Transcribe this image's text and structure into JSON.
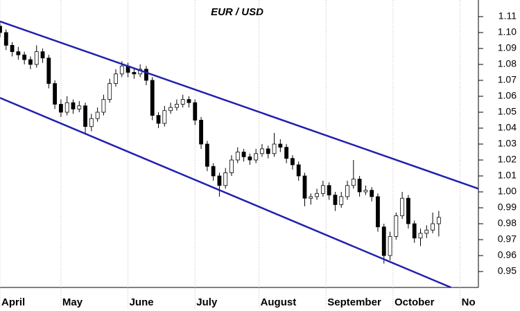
{
  "chart_data": {
    "type": "candlestick",
    "title": "EUR / USD",
    "x": [
      0,
      2,
      4,
      6,
      8,
      10,
      12,
      14,
      16,
      18,
      20,
      22,
      24,
      26,
      28,
      30,
      32,
      34,
      36,
      38,
      40,
      42,
      44,
      46,
      48,
      50,
      52,
      54,
      56,
      58,
      60,
      62,
      64,
      66,
      68,
      70,
      72,
      74,
      76,
      78,
      80,
      82,
      84,
      86,
      88,
      90,
      92,
      94,
      96,
      98,
      100,
      102,
      104,
      106,
      108,
      110,
      112,
      114,
      116,
      118,
      120,
      122,
      124,
      126,
      128,
      130,
      132,
      134,
      136,
      138,
      140,
      142,
      144
    ],
    "open": [
      1.104,
      1.1,
      1.092,
      1.088,
      1.086,
      1.083,
      1.08,
      1.088,
      1.084,
      1.068,
      1.055,
      1.05,
      1.056,
      1.052,
      1.054,
      1.041,
      1.046,
      1.05,
      1.058,
      1.068,
      1.074,
      1.079,
      1.075,
      1.074,
      1.077,
      1.07,
      1.048,
      1.043,
      1.051,
      1.053,
      1.055,
      1.058,
      1.056,
      1.045,
      1.03,
      1.016,
      1.01,
      1.004,
      1.012,
      1.02,
      1.025,
      1.022,
      1.02,
      1.024,
      1.027,
      1.024,
      1.03,
      1.028,
      1.021,
      1.017,
      1.01,
      0.996,
      0.997,
      0.999,
      1.004,
      0.998,
      0.992,
      0.997,
      1.004,
      1.008,
      1.0,
      1.001,
      0.997,
      0.978,
      0.96,
      0.972,
      0.985,
      0.996,
      0.98,
      0.971,
      0.974,
      0.976,
      0.98
    ],
    "high": [
      1.106,
      1.102,
      1.094,
      1.091,
      1.088,
      1.085,
      1.092,
      1.09,
      1.086,
      1.07,
      1.058,
      1.06,
      1.058,
      1.057,
      1.056,
      1.049,
      1.053,
      1.061,
      1.071,
      1.077,
      1.082,
      1.081,
      1.078,
      1.08,
      1.079,
      1.072,
      1.05,
      1.054,
      1.056,
      1.058,
      1.061,
      1.06,
      1.058,
      1.047,
      1.032,
      1.018,
      1.012,
      1.015,
      1.023,
      1.028,
      1.027,
      1.024,
      1.027,
      1.03,
      1.029,
      1.037,
      1.033,
      1.03,
      1.023,
      1.019,
      1.012,
      0.999,
      1.002,
      1.007,
      1.006,
      1.0,
      1.0,
      1.007,
      1.02,
      1.01,
      1.004,
      1.003,
      0.999,
      0.98,
      0.975,
      0.987,
      1.0,
      0.998,
      0.982,
      0.977,
      0.979,
      0.987,
      0.988
    ],
    "low": [
      1.097,
      1.089,
      1.085,
      1.083,
      1.08,
      1.077,
      1.078,
      1.081,
      1.065,
      1.052,
      1.047,
      1.048,
      1.049,
      1.05,
      1.036,
      1.038,
      1.044,
      1.048,
      1.056,
      1.066,
      1.072,
      1.072,
      1.071,
      1.072,
      1.067,
      1.045,
      1.04,
      1.041,
      1.049,
      1.051,
      1.053,
      1.053,
      1.042,
      1.027,
      1.013,
      1.007,
      0.997,
      1.002,
      1.01,
      1.018,
      1.019,
      1.017,
      1.018,
      1.022,
      1.021,
      1.022,
      1.025,
      1.018,
      1.014,
      1.007,
      0.991,
      0.992,
      0.995,
      0.997,
      0.995,
      0.988,
      0.99,
      0.995,
      1.002,
      0.997,
      0.998,
      0.994,
      0.975,
      0.955,
      0.957,
      0.97,
      0.983,
      0.977,
      0.968,
      0.966,
      0.971,
      0.974,
      0.972
    ],
    "close": [
      1.1,
      1.092,
      1.088,
      1.086,
      1.083,
      1.08,
      1.088,
      1.084,
      1.068,
      1.055,
      1.05,
      1.056,
      1.052,
      1.054,
      1.041,
      1.046,
      1.05,
      1.058,
      1.068,
      1.074,
      1.079,
      1.075,
      1.074,
      1.077,
      1.07,
      1.048,
      1.043,
      1.051,
      1.053,
      1.055,
      1.058,
      1.056,
      1.045,
      1.03,
      1.016,
      1.01,
      1.004,
      1.012,
      1.02,
      1.025,
      1.022,
      1.02,
      1.024,
      1.027,
      1.024,
      1.03,
      1.028,
      1.021,
      1.017,
      1.01,
      0.996,
      0.997,
      0.999,
      1.004,
      0.998,
      0.992,
      0.997,
      1.004,
      1.008,
      1.0,
      1.001,
      0.997,
      0.978,
      0.96,
      0.972,
      0.985,
      0.996,
      0.98,
      0.971,
      0.974,
      0.976,
      0.98,
      0.984
    ],
    "up_color": "#ffffff",
    "down_color": "#000000",
    "trend_lines": [
      {
        "color": "#2020b0",
        "x": [
          0,
          157
        ],
        "y": [
          1.107,
          1.002
        ]
      },
      {
        "color": "#2020b0",
        "x": [
          0,
          148
        ],
        "y": [
          1.059,
          0.94
        ]
      }
    ],
    "xlim": [
      0,
      157
    ],
    "xticks": [
      {
        "value": 0,
        "label": "April"
      },
      {
        "value": 20,
        "label": "May"
      },
      {
        "value": 42,
        "label": "June"
      },
      {
        "value": 64,
        "label": "July"
      },
      {
        "value": 85,
        "label": "August"
      },
      {
        "value": 107,
        "label": "September"
      },
      {
        "value": 129,
        "label": "October"
      },
      {
        "value": 151,
        "label": "No"
      }
    ],
    "ylim": [
      0.94,
      1.12
    ],
    "yticks": [
      0.95,
      0.96,
      0.97,
      0.98,
      0.99,
      {
        "value": 1.0,
        "label": "1.00"
      },
      1.01,
      1.02,
      1.03,
      1.04,
      1.05,
      1.06,
      1.07,
      1.08,
      1.09,
      {
        "value": 1.1,
        "label": "1.10"
      },
      1.11
    ],
    "grid": true
  }
}
